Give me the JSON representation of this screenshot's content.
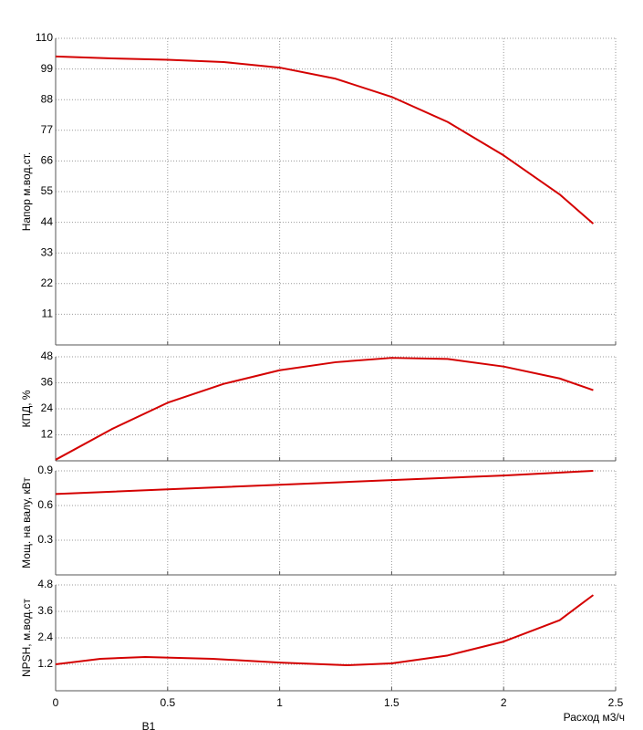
{
  "chart_data": [
    {
      "type": "line",
      "ylabel": "Напор м.вод.ст.",
      "x": [
        0,
        0.25,
        0.5,
        0.75,
        1.0,
        1.25,
        1.5,
        1.75,
        2.0,
        2.25,
        2.4
      ],
      "series": [
        {
          "name": "Напор",
          "color": "#d40000",
          "values": [
            103.5,
            102.8,
            102.3,
            101.5,
            99.5,
            95.5,
            89,
            80,
            68,
            54,
            43.5
          ]
        }
      ],
      "xlim": [
        0,
        2.5
      ],
      "ylim": [
        0,
        110
      ],
      "yticks": [
        11,
        22,
        33,
        44,
        55,
        66,
        77,
        88,
        99,
        110
      ],
      "grid": true
    },
    {
      "type": "line",
      "ylabel": "КПД, %",
      "x": [
        0,
        0.25,
        0.5,
        0.75,
        1.0,
        1.25,
        1.5,
        1.75,
        2.0,
        2.25,
        2.4
      ],
      "series": [
        {
          "name": "КПД",
          "color": "#d40000",
          "values": [
            0.5,
            14.6,
            26.8,
            35.5,
            41.8,
            45.5,
            47.5,
            47,
            43.5,
            38,
            32.6
          ]
        }
      ],
      "xlim": [
        0,
        2.5
      ],
      "ylim": [
        0,
        48
      ],
      "yticks": [
        12,
        24,
        36,
        48
      ],
      "grid": true
    },
    {
      "type": "line",
      "ylabel": "Мощ. на валу, кВт",
      "x": [
        0,
        0.5,
        1.0,
        1.5,
        2.0,
        2.4
      ],
      "series": [
        {
          "name": "Мощность",
          "color": "#d40000",
          "values": [
            0.7,
            0.74,
            0.78,
            0.82,
            0.86,
            0.9
          ]
        }
      ],
      "xlim": [
        0,
        2.5
      ],
      "ylim": [
        0,
        0.9
      ],
      "yticks": [
        0.3,
        0.6,
        0.9
      ],
      "grid": true
    },
    {
      "type": "line",
      "ylabel": "NPSH, м.вод.ст",
      "xlabel": "Расход м3/ч",
      "x": [
        0,
        0.2,
        0.4,
        0.7,
        1.0,
        1.3,
        1.5,
        1.75,
        2.0,
        2.25,
        2.4
      ],
      "series": [
        {
          "name": "NPSH",
          "color": "#d40000",
          "values": [
            1.2,
            1.45,
            1.53,
            1.45,
            1.28,
            1.16,
            1.24,
            1.6,
            2.23,
            3.2,
            4.34
          ]
        }
      ],
      "xlim": [
        0,
        2.5
      ],
      "ylim": [
        0,
        4.8
      ],
      "xticks": [
        0,
        0.5,
        1,
        1.5,
        2,
        2.5
      ],
      "yticks": [
        1.2,
        2.4,
        3.6,
        4.8
      ],
      "grid": true
    }
  ],
  "footer": "В1"
}
